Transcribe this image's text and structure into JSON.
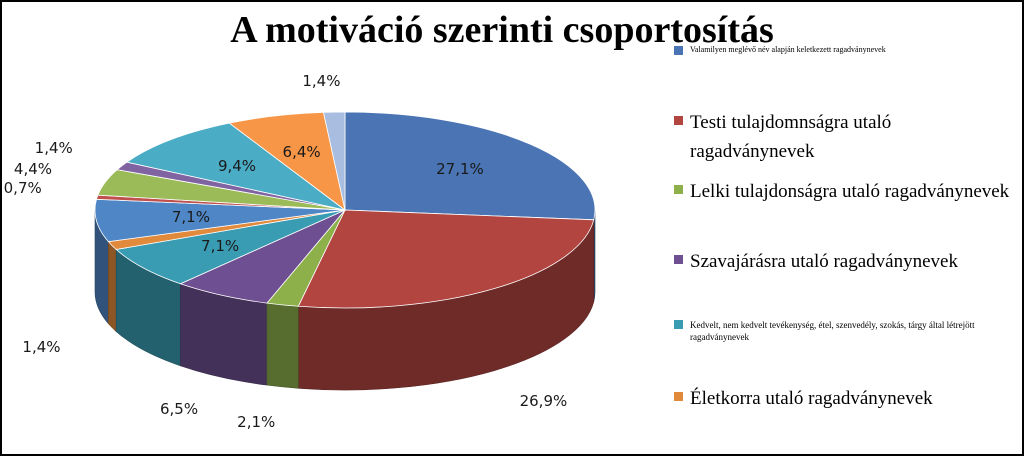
{
  "chart_data": {
    "type": "pie",
    "title": "A motiváció szerinti csoportosítás",
    "slices": [
      {
        "label": "Valamilyen meglévő név alapján keletkezett ragadványnevek",
        "value": 27.1,
        "display": "27,1%",
        "color": "#4a74b3"
      },
      {
        "label": "Testi tulajdomnságra utaló ragadványnevek",
        "value": 26.9,
        "display": "26,9%",
        "color": "#b34541"
      },
      {
        "label": "Lelki tulajdonságra utaló ragadványnevek",
        "value": 2.1,
        "display": "2,1%",
        "color": "#8db04b"
      },
      {
        "label": "Szavajárásra utaló ragadványnevek",
        "value": 6.5,
        "display": "6,5%",
        "color": "#6e4f91"
      },
      {
        "label": "Kedvelt, nem kedvelt tevékenység, étel, szenvedély, szokás, tárgy által létrejött ragadványnevek",
        "value": 7.1,
        "display": "7,1%",
        "color": "#3a9cb3"
      },
      {
        "label": "Életkorra utaló ragadványnevek",
        "value": 1.4,
        "display": "1,4%",
        "color": "#e18a3c"
      },
      {
        "label": "",
        "value": 7.1,
        "display": "7,1%",
        "color": "#4f86c6"
      },
      {
        "label": "",
        "value": 0.7,
        "display": "0,7%",
        "color": "#c0504d"
      },
      {
        "label": "",
        "value": 4.4,
        "display": "4,4%",
        "color": "#9bbb59"
      },
      {
        "label": "",
        "value": 1.4,
        "display": "1,4%",
        "color": "#8064a2"
      },
      {
        "label": "",
        "value": 9.4,
        "display": "9,4%",
        "color": "#4bacc6"
      },
      {
        "label": "",
        "value": 6.4,
        "display": "6,4%",
        "color": "#f79646"
      },
      {
        "label": "",
        "value": 1.4,
        "display": "1,4%",
        "color": "#a9bde0"
      }
    ],
    "legend_position": "right"
  }
}
